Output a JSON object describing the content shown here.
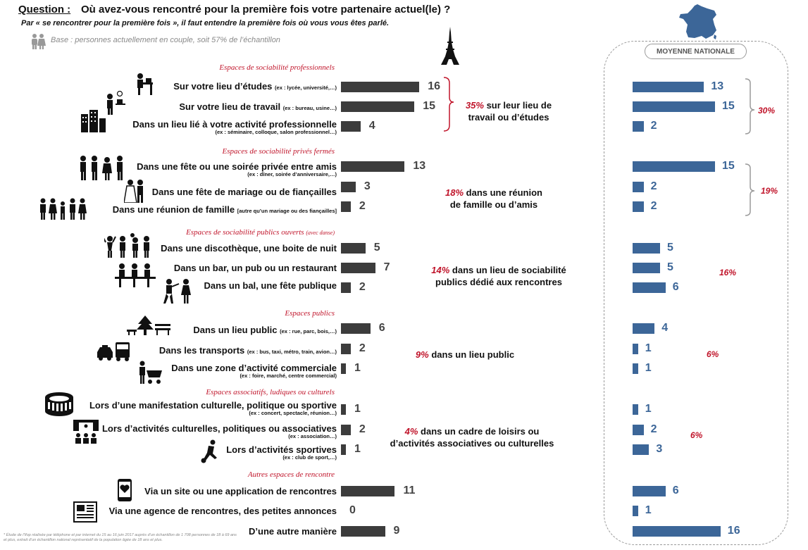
{
  "question_label": "Question :",
  "question_text": "Où avez-vous rencontré pour la première fois votre partenaire actuel(le) ?",
  "question_sub": "Par « se rencontrer pour la première fois », il faut entendre la première fois où vous vous êtes parlé.",
  "base_text": "Base : personnes actuellement en couple, soit 57% de l’échantillon",
  "national_title": "MOYENNE NATIONALE",
  "footnote": "* Étude de l’Ifop réalisée par téléphone et par internet du 15 au 16 juin 2017 auprès d’un échantillon de 1 708 personnes de 18 à 69 ans et plus, extrait d’un échantillon national représentatif de la population âgée de 18 ans et plus.",
  "sections": [
    {
      "title": "Espaces de sociabilité professionnels",
      "note": ""
    },
    {
      "title": "Espaces de sociabilité privés fermés",
      "note": ""
    },
    {
      "title": "Espaces de sociabilité publics ouverts",
      "note": "(avec danse)"
    },
    {
      "title": "Espaces publics",
      "note": ""
    },
    {
      "title": "Espaces associatifs, ludiques ou culturels",
      "note": ""
    },
    {
      "title": "Autres espaces de rencontre",
      "note": ""
    }
  ],
  "rows": [
    {
      "label": "Sur votre lieu d’études",
      "ex": "(ex : lycée, université,…)",
      "sub": ""
    },
    {
      "label": "Sur votre lieu de travail",
      "ex": "(ex : bureau, usine…)",
      "sub": ""
    },
    {
      "label": "Dans un lieu lié à votre activité professionnelle",
      "ex": "",
      "sub": "(ex : séminaire, colloque, salon professionnel…)"
    },
    {
      "label": "Dans une fête ou une soirée privée entre amis",
      "ex": "",
      "sub": "(ex : dîner, soirée d’anniversaire,…)"
    },
    {
      "label": "Dans une fête de mariage ou de fiançailles",
      "ex": "",
      "sub": ""
    },
    {
      "label": "Dans une réunion de famille",
      "ex": "[autre qu’un mariage ou des fiançailles]",
      "sub": ""
    },
    {
      "label": "Dans une discothèque, une boite de nuit",
      "ex": "",
      "sub": ""
    },
    {
      "label": "Dans un bar, un pub ou un restaurant",
      "ex": "",
      "sub": ""
    },
    {
      "label": "Dans un bal, une fête publique",
      "ex": "",
      "sub": ""
    },
    {
      "label": "Dans un lieu public",
      "ex": "(ex : rue, parc, bois,…)",
      "sub": ""
    },
    {
      "label": "Dans les transports",
      "ex": "(ex : bus, taxi, métro, train, avion…)",
      "sub": ""
    },
    {
      "label": "Dans une zone d’activité commerciale",
      "ex": "",
      "sub": "(ex : foire, marché, centre commercial)"
    },
    {
      "label": "Lors d’une manifestation culturelle, politique ou sportive",
      "ex": "",
      "sub": "(ex : concert, spectacle, réunion…)"
    },
    {
      "label": "Lors d’activités culturelles, politiques ou associatives",
      "ex": "",
      "sub": "(ex : association…)"
    },
    {
      "label": "Lors d’activités sportives",
      "ex": "",
      "sub": "(ex : club de sport,…)"
    },
    {
      "label": "Via un site ou une application de rencontres",
      "ex": "",
      "sub": ""
    },
    {
      "label": "Via une agence de rencontres, des petites annonces",
      "ex": "",
      "sub": ""
    },
    {
      "label": "D’une autre manière",
      "ex": "",
      "sub": ""
    }
  ],
  "groups": [
    {
      "pct": "35%",
      "text1": " sur leur lieu de",
      "text2": "travail ou d’études",
      "national": "30%"
    },
    {
      "pct": "18%",
      "text1": " dans une réunion",
      "text2": "de famille ou d’amis",
      "national": "19%"
    },
    {
      "pct": "14%",
      "text1": " dans un lieu de sociabilité",
      "text2": "publics dédié aux rencontres",
      "national": "16%"
    },
    {
      "pct": "9%",
      "text1": " dans un lieu public",
      "text2": "",
      "national": "6%"
    },
    {
      "pct": "4%",
      "text1": " dans un cadre de loisirs ou",
      "text2": "d’activités associatives ou culturelles",
      "national": "6%"
    }
  ],
  "chart_data": [
    {
      "type": "bar",
      "title": "Paris",
      "categories": [
        "Sur votre lieu d’études",
        "Sur votre lieu de travail",
        "Dans un lieu lié à votre activité professionnelle",
        "Dans une fête ou une soirée privée entre amis",
        "Dans une fête de mariage ou de fiançailles",
        "Dans une réunion de famille",
        "Dans une discothèque, une boite de nuit",
        "Dans un bar, un pub ou un restaurant",
        "Dans un bal, une fête publique",
        "Dans un lieu public",
        "Dans les transports",
        "Dans une zone d’activité commerciale",
        "Lors d’une manifestation culturelle, politique ou sportive",
        "Lors d’activités culturelles, politiques ou associatives",
        "Lors d’activités sportives",
        "Via un site ou une application de rencontres",
        "Via une agence de rencontres, des petites annonces",
        "D’une autre manière"
      ],
      "values": [
        16,
        15,
        4,
        13,
        3,
        2,
        5,
        7,
        2,
        6,
        2,
        1,
        1,
        2,
        1,
        11,
        0,
        9
      ],
      "color": "#3c3c3c"
    },
    {
      "type": "bar",
      "title": "MOYENNE NATIONALE",
      "categories": [
        "Sur votre lieu d’études",
        "Sur votre lieu de travail",
        "Dans un lieu lié à votre activité professionnelle",
        "Dans une fête ou une soirée privée entre amis",
        "Dans une fête de mariage ou de fiançailles",
        "Dans une réunion de famille",
        "Dans une discothèque, une boite de nuit",
        "Dans un bar, un pub ou un restaurant",
        "Dans un bal, une fête publique",
        "Dans un lieu public",
        "Dans les transports",
        "Dans une zone d’activité commerciale",
        "Lors d’une manifestation culturelle, politique ou sportive",
        "Lors d’activités culturelles, politiques ou associatives",
        "Lors d’activités sportives",
        "Via un site ou une application de rencontres",
        "Via une agence de rencontres, des petites annonces",
        "D’une autre manière"
      ],
      "values": [
        13,
        15,
        2,
        15,
        2,
        2,
        5,
        5,
        6,
        4,
        1,
        1,
        1,
        2,
        3,
        6,
        1,
        16
      ],
      "color": "#3c6698"
    }
  ]
}
